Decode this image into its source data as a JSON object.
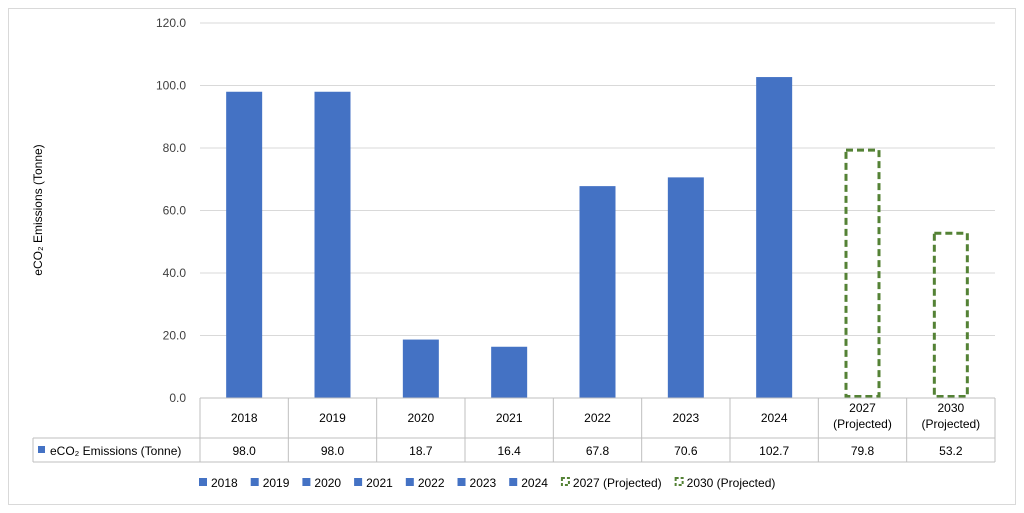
{
  "chart_data": {
    "type": "bar",
    "title": "",
    "ylabel": "eCO₂ Emissions (Tonne)",
    "ylim": [
      0,
      120
    ],
    "y_ticks": [
      "0.0",
      "20.0",
      "40.0",
      "60.0",
      "80.0",
      "100.0",
      "120.0"
    ],
    "grid": true,
    "legend_position": "bottom",
    "categories": [
      "2018",
      "2019",
      "2020",
      "2021",
      "2022",
      "2023",
      "2024",
      "2027 (Projected)",
      "2030 (Projected)"
    ],
    "values": [
      98.0,
      98.0,
      18.7,
      16.4,
      67.8,
      70.6,
      102.7,
      79.8,
      53.2
    ],
    "value_labels": [
      "98.0",
      "98.0",
      "18.7",
      "16.4",
      "67.8",
      "70.6",
      "102.7",
      "79.8",
      "53.2"
    ],
    "projected": [
      false,
      false,
      false,
      false,
      false,
      false,
      false,
      true,
      true
    ],
    "data_table_series_label": "eCO₂ Emissions (Tonne)",
    "legend": [
      "2018",
      "2019",
      "2020",
      "2021",
      "2022",
      "2023",
      "2024",
      "2027 (Projected)",
      "2030 (Projected)"
    ],
    "colors": {
      "actual": "#4472c4",
      "projected": "#548235",
      "grid": "#d9d9d9"
    }
  }
}
